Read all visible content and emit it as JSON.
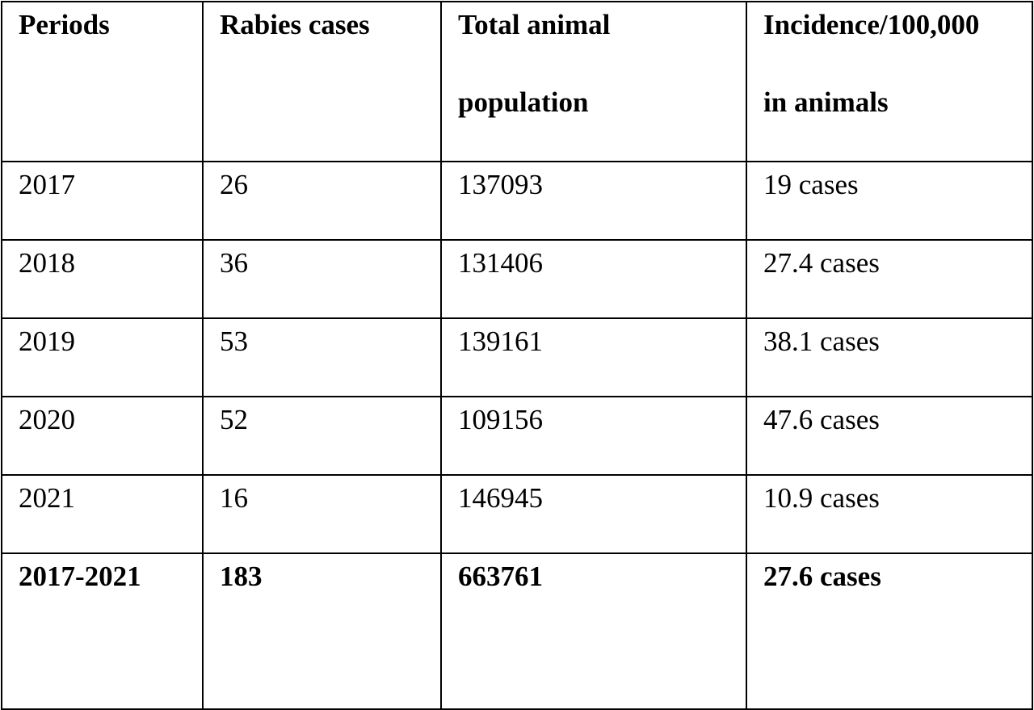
{
  "table": {
    "headers": [
      [
        "Periods"
      ],
      [
        "Rabies cases"
      ],
      [
        "Total animal",
        "population"
      ],
      [
        "Incidence/100,000",
        "in animals"
      ]
    ],
    "rows": [
      [
        "2017",
        "26",
        "137093",
        "19 cases"
      ],
      [
        "2018",
        "36",
        "131406",
        "27.4 cases"
      ],
      [
        "2019",
        "53",
        "139161",
        "38.1 cases"
      ],
      [
        "2020",
        "52",
        "109156",
        "47.6 cases"
      ],
      [
        "2021",
        "16",
        "146945",
        "10.9 cases"
      ]
    ],
    "total": [
      "2017-2021",
      "183",
      "663761",
      "27.6 cases"
    ]
  }
}
